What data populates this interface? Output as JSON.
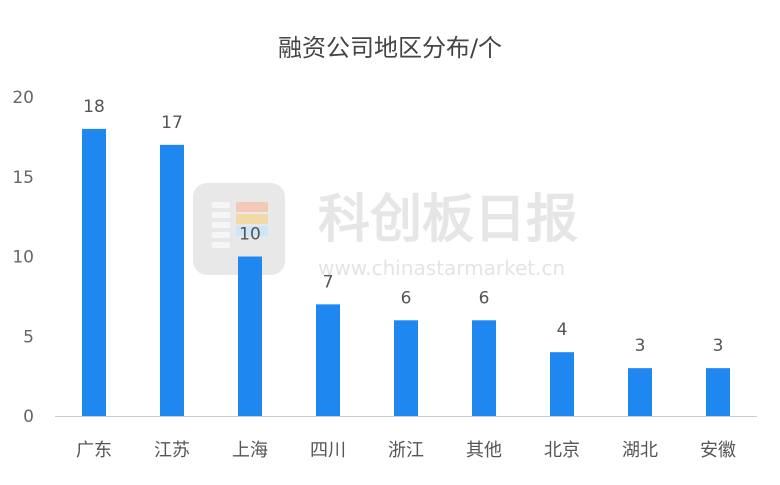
{
  "chart_data": {
    "type": "bar",
    "title": "融资公司地区分布/个",
    "xlabel": "",
    "ylabel": "",
    "categories": [
      "广东",
      "江苏",
      "上海",
      "四川",
      "浙江",
      "其他",
      "北京",
      "湖北",
      "安徽"
    ],
    "values": [
      18,
      17,
      10,
      7,
      6,
      6,
      4,
      3,
      3
    ],
    "ylim": [
      0,
      20
    ],
    "yticks": [
      0,
      5,
      10,
      15,
      20
    ],
    "grid": false,
    "legend": "none",
    "bar_color": "#1e87f0",
    "data_labels": true
  },
  "watermark": {
    "text": "科创板日报",
    "url": "www.chinastarmarket.cn"
  }
}
